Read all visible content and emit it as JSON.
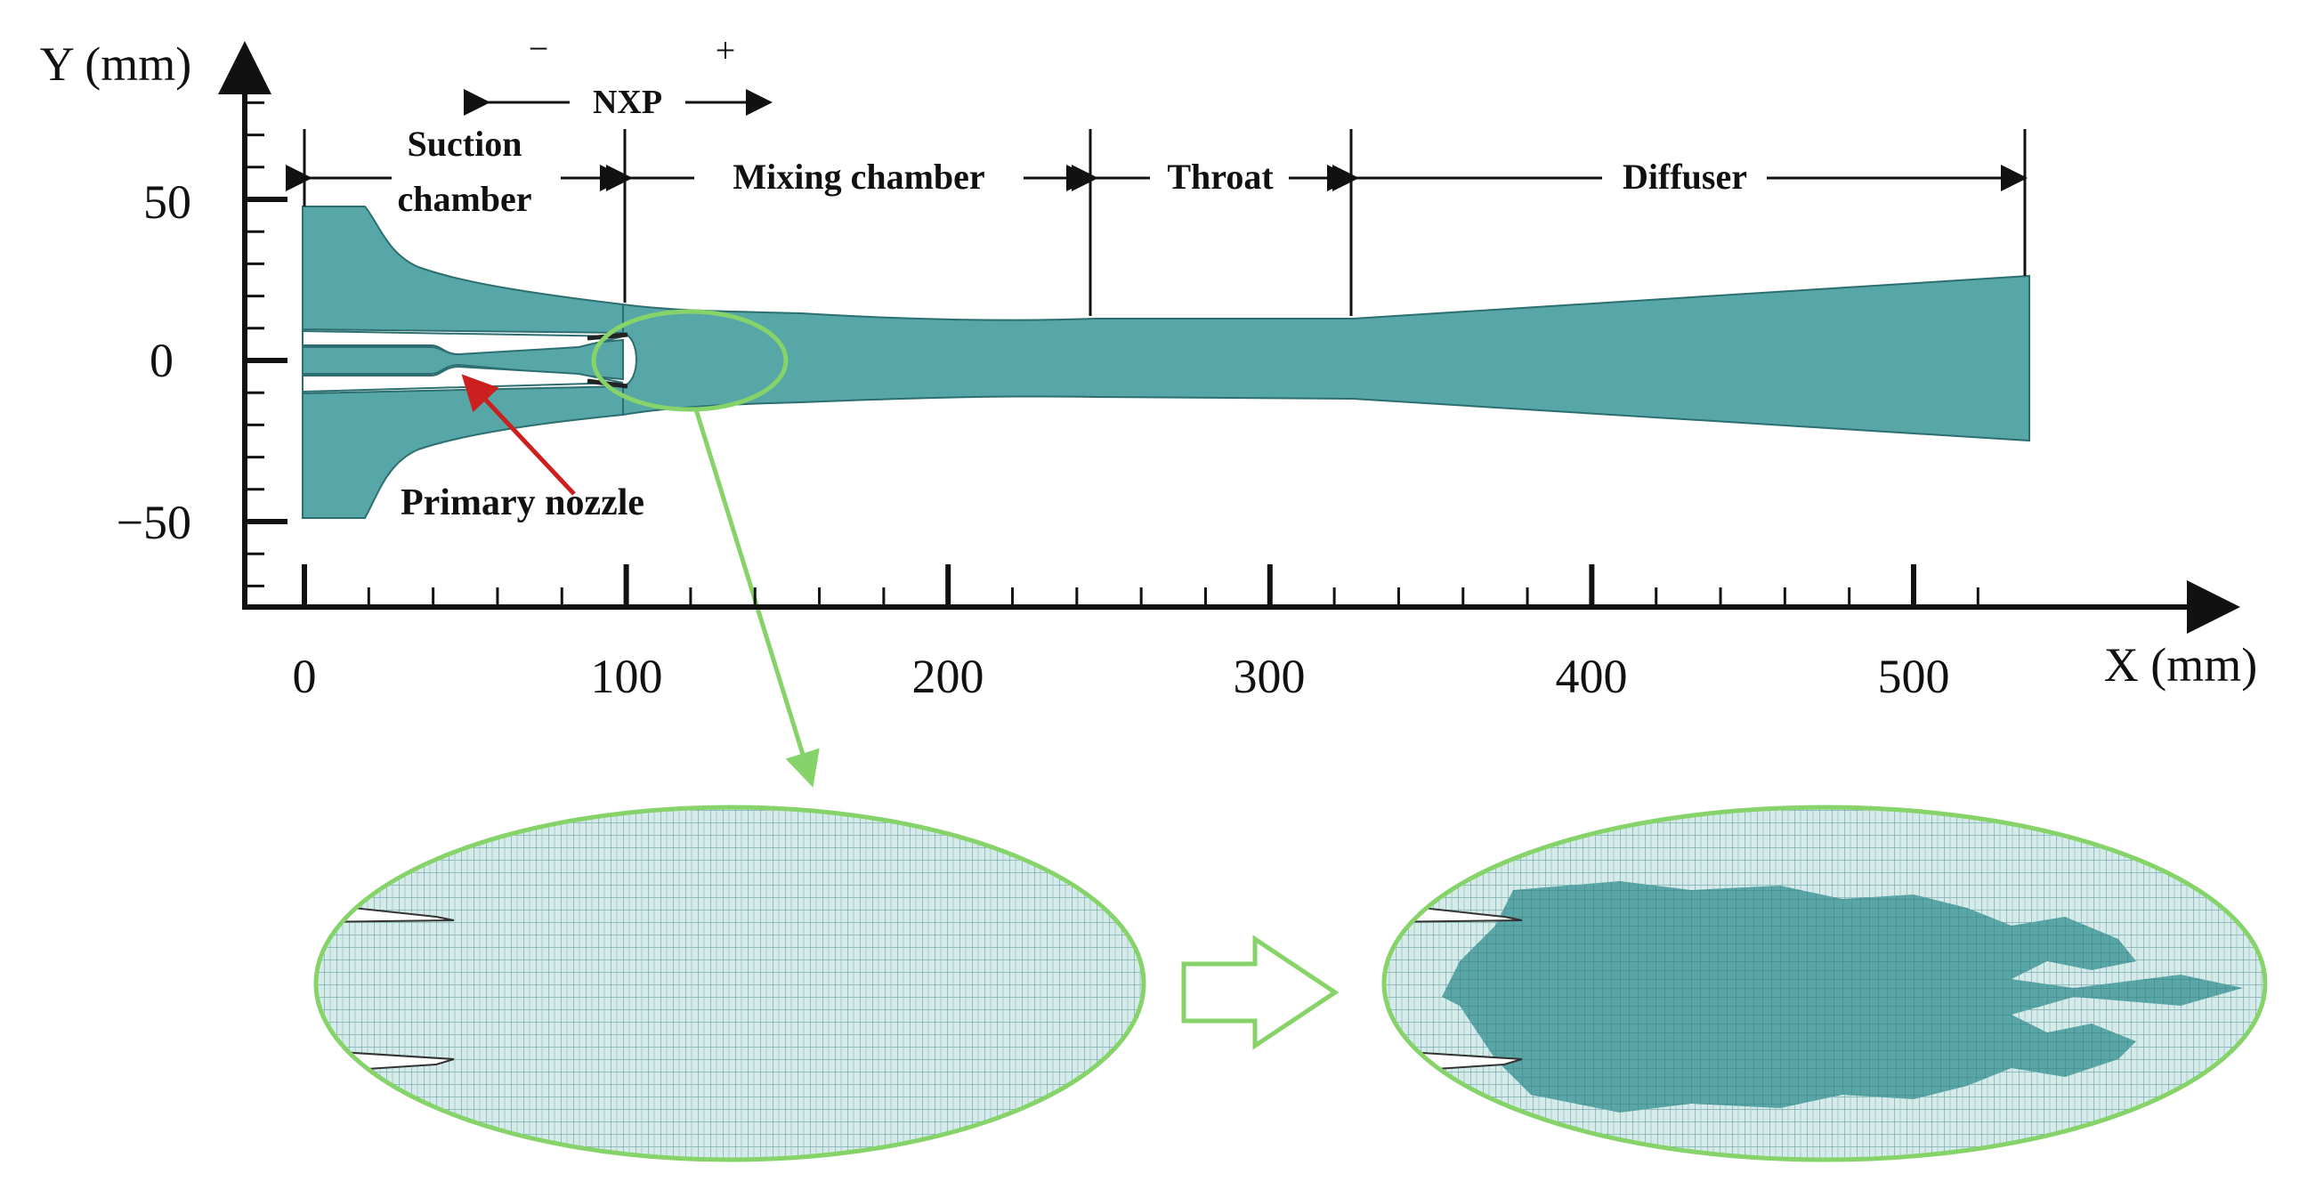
{
  "axes": {
    "y_label": "Y (mm)",
    "x_label": "X (mm)",
    "x_ticks": [
      "0",
      "100",
      "200",
      "300",
      "400",
      "500"
    ],
    "y_ticks": [
      "50",
      "0",
      "−50"
    ]
  },
  "nxp": {
    "label": "NXP",
    "minus": "−",
    "plus": "+"
  },
  "sections": {
    "suction_line1": "Suction",
    "suction_line2": "chamber",
    "mixing": "Mixing chamber",
    "throat": "Throat",
    "diffuser": "Diffuser"
  },
  "annotations": {
    "primary_nozzle": "Primary nozzle"
  },
  "colors": {
    "fluid": "#57a6a8",
    "mesh": "#cfe7e6",
    "highlight": "#86d36a",
    "pointer": "#cc1f1f"
  }
}
